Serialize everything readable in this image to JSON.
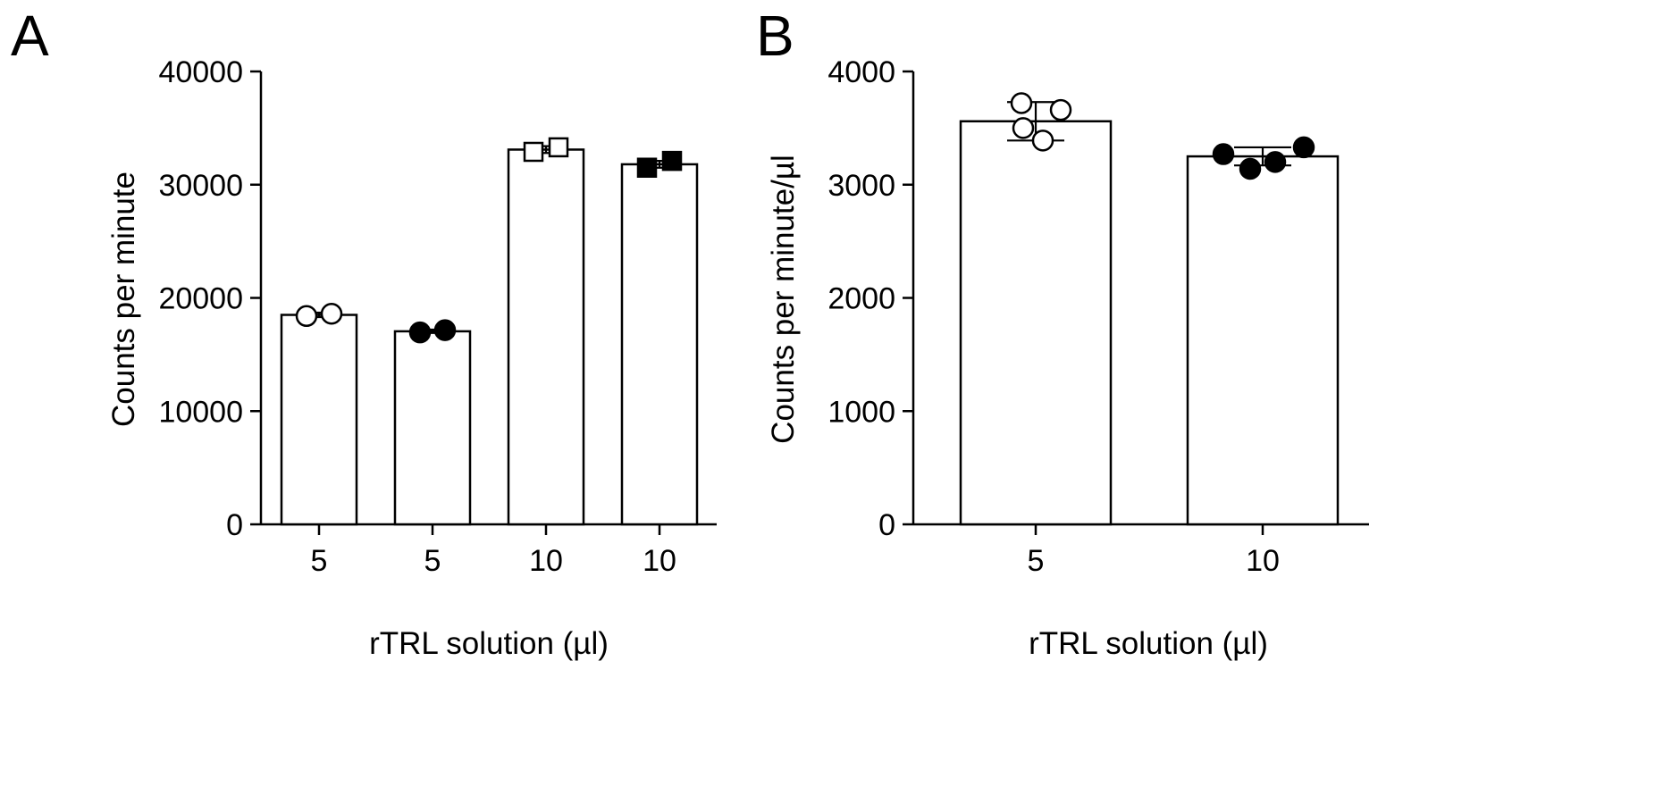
{
  "chart_data": [
    {
      "panel": "A",
      "type": "bar",
      "categories": [
        "5",
        "5",
        "10",
        "10"
      ],
      "values": [
        18500,
        17050,
        33100,
        31800
      ],
      "error": [
        200,
        150,
        300,
        300
      ],
      "points": [
        {
          "marker": "circle-open",
          "values": [
            18400,
            18600
          ]
        },
        {
          "marker": "circle-filled",
          "values": [
            16950,
            17150
          ]
        },
        {
          "marker": "square-open",
          "values": [
            32900,
            33300
          ]
        },
        {
          "marker": "square-filled",
          "values": [
            31500,
            32100
          ]
        }
      ],
      "yticks": [
        "0",
        "10000",
        "20000",
        "30000",
        "40000"
      ],
      "ylim": [
        0,
        40000
      ],
      "xlabel": "rTRL solution (µl)",
      "ylabel": "Counts per minute",
      "grid": false
    },
    {
      "panel": "B",
      "type": "bar",
      "categories": [
        "5",
        "10"
      ],
      "values": [
        3560,
        3250
      ],
      "error": [
        170,
        80
      ],
      "points": [
        {
          "marker": "circle-open",
          "values": [
            3720,
            3660,
            3500,
            3390
          ]
        },
        {
          "marker": "circle-filled",
          "values": [
            3270,
            3140,
            3200,
            3330
          ]
        }
      ],
      "yticks": [
        "0",
        "1000",
        "2000",
        "3000",
        "4000"
      ],
      "ylim": [
        0,
        4000
      ],
      "xlabel": "rTRL solution (µl)",
      "ylabel": "Counts per minute/µl",
      "grid": false
    }
  ],
  "colors": {
    "ink": "#000000",
    "bar_fill": "#ffffff",
    "background": "#ffffff"
  }
}
